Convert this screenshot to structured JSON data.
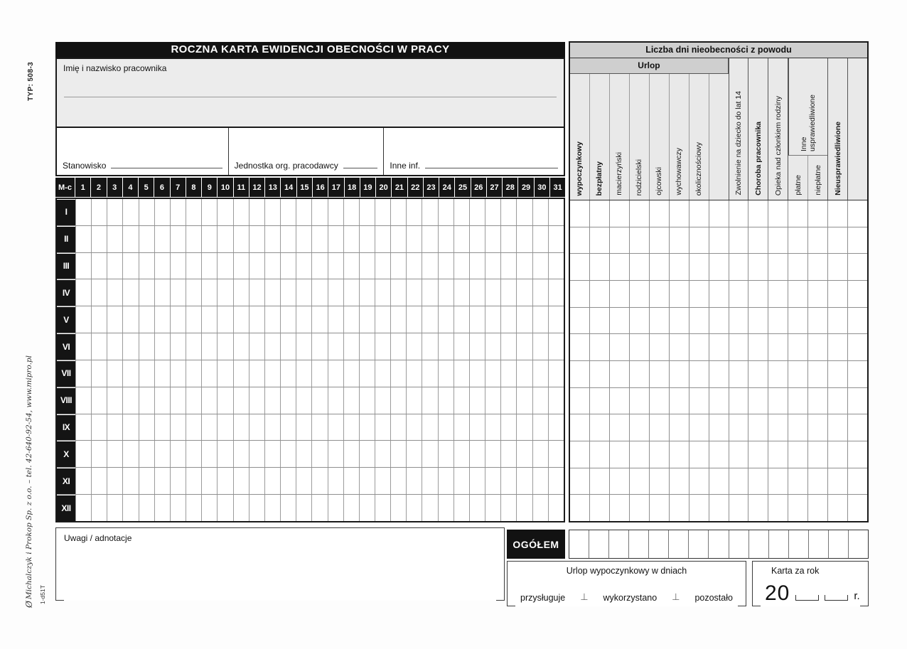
{
  "page": {
    "type_code": "TYP: 508-3",
    "publisher_logo": "Ø",
    "publisher": "Michalczyk i Prokop  Sp. z o.o. – tel. 42-640-92-54, www.mipro.pl",
    "form_code": "1-d51T"
  },
  "left_table": {
    "title": "ROCZNA KARTA EWIDENCJI OBECNOŚCI W PRACY",
    "name_label": "Imię i nazwisko pracownika",
    "position_label": "Stanowisko",
    "org_unit_label": "Jednostka org. pracodawcy",
    "other_info_label": "Inne inf.",
    "month_col_header": "M-c",
    "days": [
      "1",
      "2",
      "3",
      "4",
      "5",
      "6",
      "7",
      "8",
      "9",
      "10",
      "11",
      "12",
      "13",
      "14",
      "15",
      "16",
      "17",
      "18",
      "19",
      "20",
      "21",
      "22",
      "23",
      "24",
      "25",
      "26",
      "27",
      "28",
      "29",
      "30",
      "31"
    ],
    "months": [
      "I",
      "II",
      "III",
      "IV",
      "V",
      "VI",
      "VII",
      "VIII",
      "IX",
      "X",
      "XI",
      "XII"
    ]
  },
  "right_table": {
    "title": "Liczba dni nieobecności z powodu",
    "urlop_header": "Urlop",
    "urlop_columns": [
      "wypoczynkowy",
      "bezpłatny",
      "macierzyński",
      "rodzicielski",
      "ojcowski",
      "wychowawczy",
      "okolicznościowy",
      ""
    ],
    "col_child_sick": "Zwolnienie na dziecko do lat 14",
    "col_employee_sick": "Choroba pracownika",
    "col_family_care": "Opieka nad członkiem rodziny",
    "inne_group_line1": "Inne",
    "inne_group_line2": "usprawiedliwione",
    "inne_sub": [
      "płatne",
      "niepłatne"
    ],
    "col_unexcused": "Nieusprawiedliwione",
    "col_blank": ""
  },
  "bottom": {
    "remarks_label": "Uwagi / adnotacje",
    "total_label": "OGÓŁEM",
    "vacation_title": "Urlop wypoczynkowy w dniach",
    "vacation_fields": [
      "przysługuje",
      "wykorzystano",
      "pozostało"
    ],
    "divider_glyph": "⊥",
    "year_title": "Karta za rok",
    "year_prefix": "20",
    "year_suffix": "r."
  }
}
